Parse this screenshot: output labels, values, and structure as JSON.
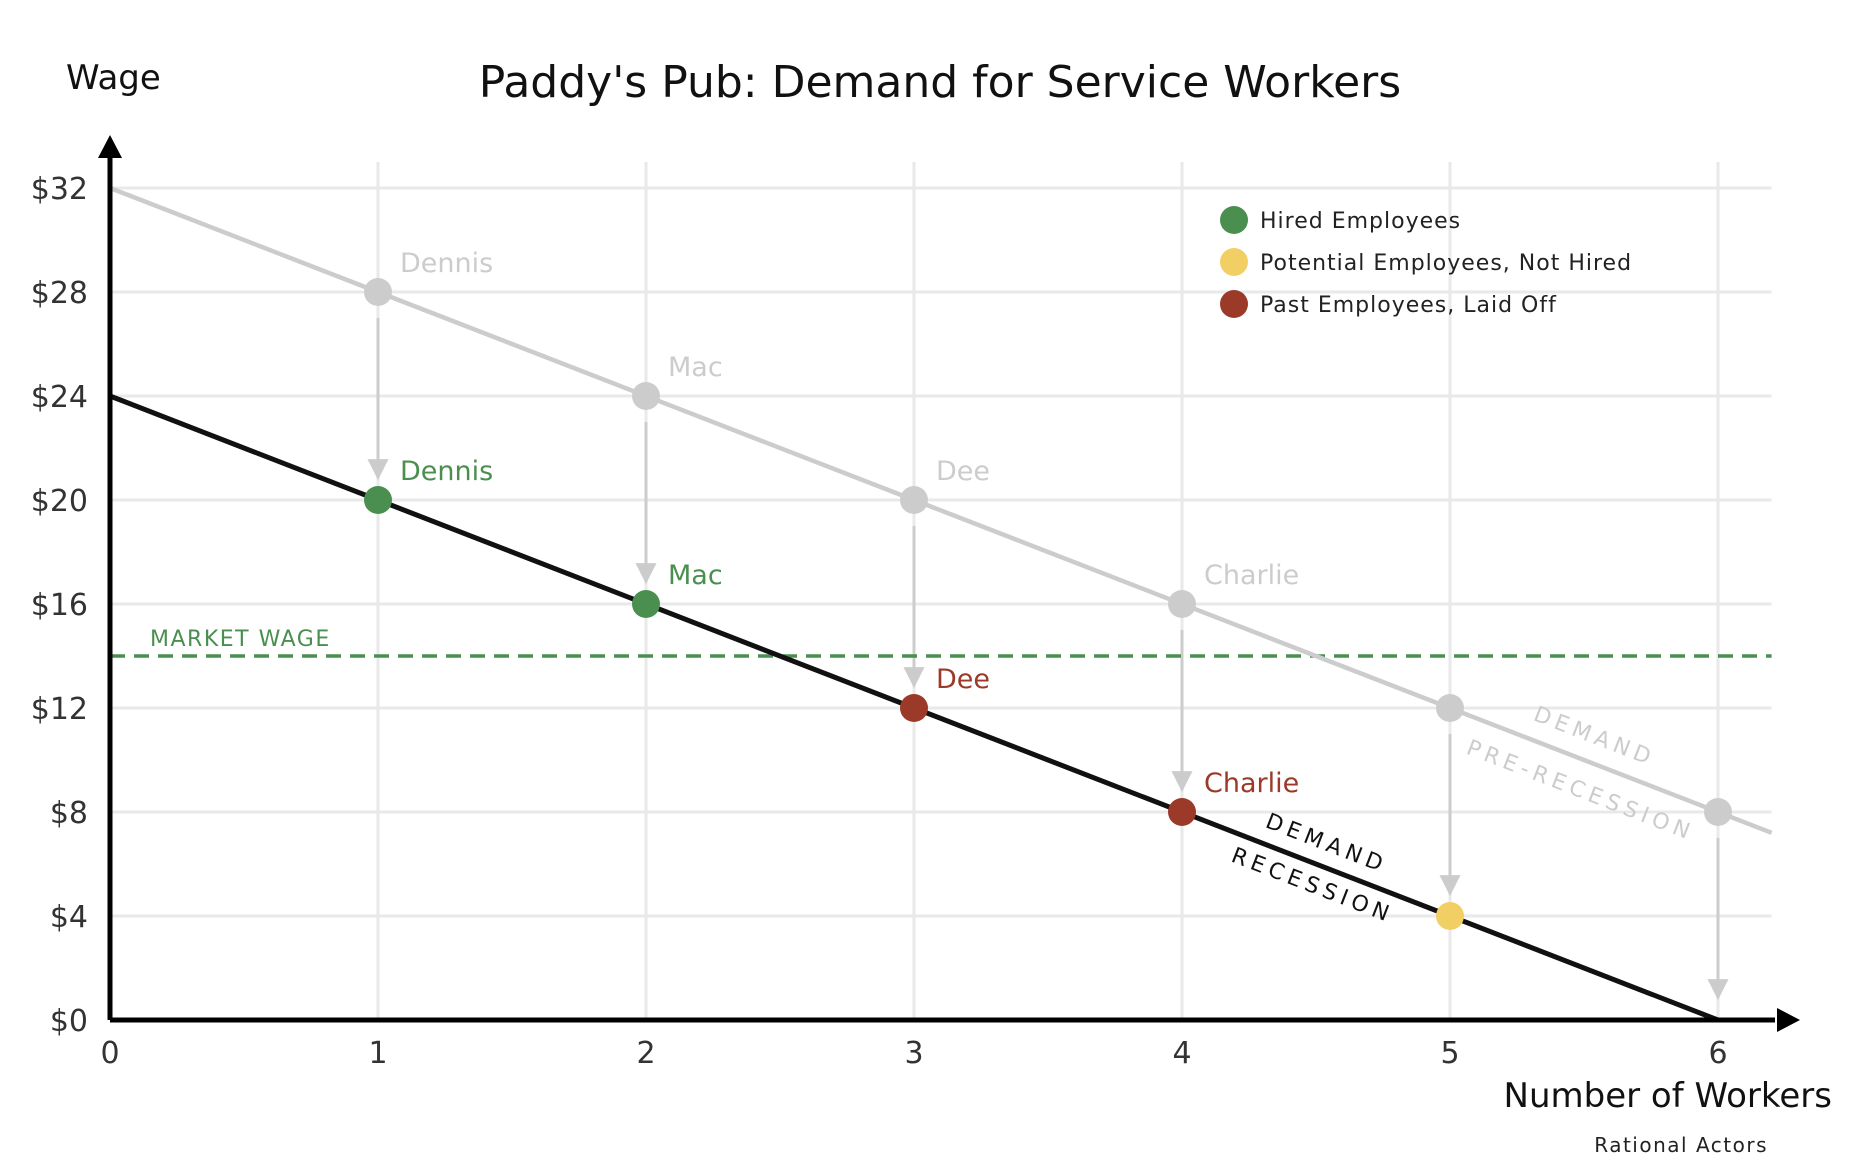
{
  "chart_data": {
    "type": "line",
    "title": "Paddy's Pub: Demand for Service Workers",
    "xlabel": "Number of Workers",
    "ylabel": "Wage",
    "footnote": "Rational Actors",
    "xlim": [
      0,
      6.2
    ],
    "ylim": [
      0,
      33
    ],
    "x_ticks": [
      "0",
      "1",
      "2",
      "3",
      "4",
      "5",
      "6"
    ],
    "y_ticks": [
      "$0",
      "$4",
      "$8",
      "$12",
      "$16",
      "$20",
      "$24",
      "$28",
      "$32"
    ],
    "grid": true,
    "legend_position": "top-right",
    "legend": [
      {
        "label": "Hired Employees",
        "color": "#4a8f4f"
      },
      {
        "label": "Potential Employees, Not Hired",
        "color": "#f2cf64"
      },
      {
        "label": "Past Employees, Laid Off",
        "color": "#9b3a28"
      }
    ],
    "colors": {
      "pre_recession": "#cccccc",
      "recession": "#111111",
      "hired": "#4a8f4f",
      "potential": "#f2cf64",
      "laid_off": "#9b3a28",
      "market_wage": "#4a8f4f"
    },
    "series": [
      {
        "name": "Demand Pre-Recession",
        "label_lines": [
          "Demand",
          "Pre-Recession"
        ],
        "line": {
          "x": [
            0,
            6.2
          ],
          "y": [
            32,
            7.2
          ]
        },
        "points": [
          {
            "x": 1,
            "y": 28,
            "label": "Dennis"
          },
          {
            "x": 2,
            "y": 24,
            "label": "Mac"
          },
          {
            "x": 3,
            "y": 20,
            "label": "Dee"
          },
          {
            "x": 4,
            "y": 16,
            "label": "Charlie"
          },
          {
            "x": 5,
            "y": 12,
            "label": ""
          },
          {
            "x": 6,
            "y": 8,
            "label": ""
          }
        ]
      },
      {
        "name": "Demand Recession",
        "label_lines": [
          "Demand",
          "Recession"
        ],
        "line": {
          "x": [
            0,
            6
          ],
          "y": [
            24,
            0
          ]
        },
        "points": [
          {
            "x": 1,
            "y": 20,
            "label": "Dennis",
            "status": "hired"
          },
          {
            "x": 2,
            "y": 16,
            "label": "Mac",
            "status": "hired"
          },
          {
            "x": 3,
            "y": 12,
            "label": "Dee",
            "status": "laid_off"
          },
          {
            "x": 4,
            "y": 8,
            "label": "Charlie",
            "status": "laid_off"
          },
          {
            "x": 5,
            "y": 4,
            "label": "",
            "status": "potential"
          }
        ]
      }
    ],
    "shift_arrows": [
      {
        "x": 1,
        "from": 28,
        "to": 20
      },
      {
        "x": 2,
        "from": 24,
        "to": 16
      },
      {
        "x": 3,
        "from": 20,
        "to": 12
      },
      {
        "x": 4,
        "from": 16,
        "to": 8
      },
      {
        "x": 5,
        "from": 12,
        "to": 4
      },
      {
        "x": 6,
        "from": 8,
        "to": 0
      }
    ],
    "market_wage": {
      "value": 14,
      "label": "Market Wage"
    }
  }
}
